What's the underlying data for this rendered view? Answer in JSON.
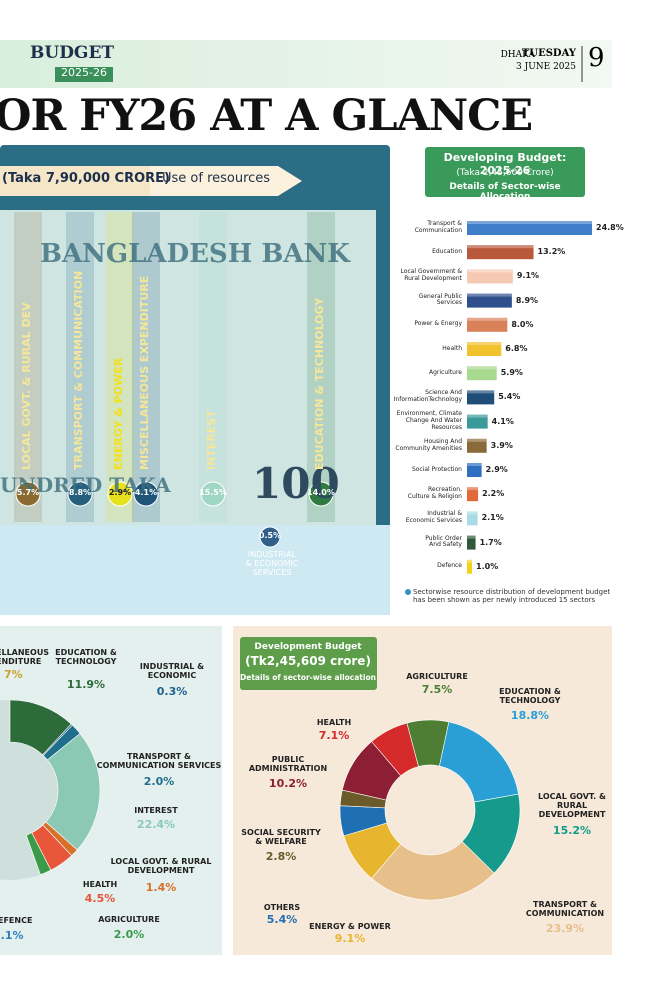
{
  "header": {
    "section": "BUDGET",
    "year": "2025-26",
    "city": "DHAKA",
    "day": "TUESDAY",
    "date": "3 JUNE 2025",
    "page": "9"
  },
  "headline": "OR FY26 AT A GLANCE",
  "chart_data": [
    {
      "type": "strip",
      "title": "(Taka 7,90,000 CRORE)",
      "subtitle": "Use of resources",
      "note_text": [
        "BANGLADESH BANK",
        "UNDRED TAKA",
        "100"
      ],
      "categories": [
        "LOCAL GOVT. & RURAL DEV",
        "TRANSPORT & COMMUNICATION",
        "ENERGY & POWER",
        "MISCELLANEOUS EXPENDITURE",
        "INTEREST",
        "EDUCATION & TECHNOLOGY",
        "INDUSTRIAL\n& ECONOMIC\nSERVICES"
      ],
      "values": [
        5.7,
        8.8,
        2.9,
        4.1,
        15.5,
        14.0,
        0.5
      ],
      "value_labels": [
        "5.7%",
        "8.8%",
        "2.9%",
        "4.1%",
        "15.5%",
        "14.0%",
        "0.5%"
      ],
      "colors": [
        "#8a6a2e",
        "#24607e",
        "#e8e21e",
        "#1e5478",
        "#9fd6c4",
        "#2f7a3e",
        "#2f5f8a"
      ]
    },
    {
      "type": "hbar",
      "title": "Developing Budget: 2025-26",
      "subtitle": "(Taka 2,45,609 Crore)",
      "caption": "Details of Sector-wise Allocation",
      "categories": [
        "Transport &\nCommunication",
        "Education",
        "Local Government &\nRural Development",
        "General Public\nServices",
        "Power & Energy",
        "Health",
        "Agriculture",
        "Science And\nInformationTechnology",
        "Environment, Climate\nChange And Water\nResources",
        "Housing And\nCommunity Amenities",
        "Social Protection",
        "Recreation,\nCulture & Religion",
        "Industrial &\nEconomic Services",
        "Public Order\nAnd Safety",
        "Defence"
      ],
      "values": [
        24.8,
        13.2,
        9.1,
        8.9,
        8.0,
        6.8,
        5.9,
        5.4,
        4.1,
        3.9,
        2.9,
        2.2,
        2.1,
        1.7,
        1.0
      ],
      "value_labels": [
        "24.8%",
        "13.2%",
        "9.1%",
        "8.9%",
        "8.0%",
        "6.8%",
        "5.9%",
        "5.4%",
        "4.1%",
        "3.9%",
        "2.9%",
        "2.2%",
        "2.1%",
        "1.7%",
        "1.0%"
      ],
      "colors": [
        "#3f7fc9",
        "#b9583a",
        "#f6c9b4",
        "#2e4f8c",
        "#d9825a",
        "#f2c12e",
        "#a9d98f",
        "#1f4e79",
        "#3a9a9a",
        "#8a6a3a",
        "#2f6fbf",
        "#e06a3a",
        "#a8dbe6",
        "#2f5a3a",
        "#f2d21e"
      ],
      "footnote": "Sectorwise resource distribution of development budget\nhas been shown as per newly introduced 15 sectors"
    },
    {
      "type": "donut",
      "cropped_labels": [
        "ELLANEOUS\nENDITURE",
        "7%",
        "EFENCE",
        "5.1%"
      ],
      "categories": [
        "EDUCATION &\nTECHNOLOGY",
        "INDUSTRIAL &\nECONOMIC",
        "TRANSPORT &\nCOMMUNICATION SERVICES",
        "INTEREST",
        "LOCAL GOVT. & RURAL\nDEVELOPMENT",
        "HEALTH",
        "AGRICULTURE"
      ],
      "values": [
        11.9,
        0.3,
        2.0,
        22.4,
        1.4,
        4.5,
        2.0
      ],
      "value_labels": [
        "11.9%",
        "0.3%",
        "2.0%",
        "22.4%",
        "1.4%",
        "4.5%",
        "2.0%"
      ],
      "colors": [
        "#2e6b3a",
        "#1f5f8b",
        "#1f6e8c",
        "#8cc9b5",
        "#d9702a",
        "#e8563a",
        "#3a9a4a"
      ]
    },
    {
      "type": "donut",
      "title": "Development Budget",
      "subtitle": "(Tk2,45,609 crore)",
      "caption": "Details of sector-wise allocation",
      "categories": [
        "AGRICULTURE",
        "EDUCATION &\nTECHNOLOGY",
        "LOCAL GOVT. &\nRURAL\nDEVELOPMENT",
        "TRANSPORT &\nCOMMUNICATION",
        "ENERGY & POWER",
        "OTHERS",
        "SOCIAL SECURITY\n& WELFARE",
        "PUBLIC\nADMINISTRATION",
        "HEALTH"
      ],
      "values": [
        7.5,
        18.8,
        15.2,
        23.9,
        9.1,
        5.4,
        2.8,
        10.2,
        7.1
      ],
      "value_labels": [
        "7.5%",
        "18.8%",
        "15.2%",
        "23.9%",
        "9.1%",
        "5.4%",
        "2.8%",
        "10.2%",
        "7.1%"
      ],
      "colors": [
        "#4e7d34",
        "#2a9fd6",
        "#159a8c",
        "#e6bf8a",
        "#e8b52e",
        "#1f6fb3",
        "#6b5a2a",
        "#8c1f33",
        "#d42a2a"
      ]
    }
  ]
}
